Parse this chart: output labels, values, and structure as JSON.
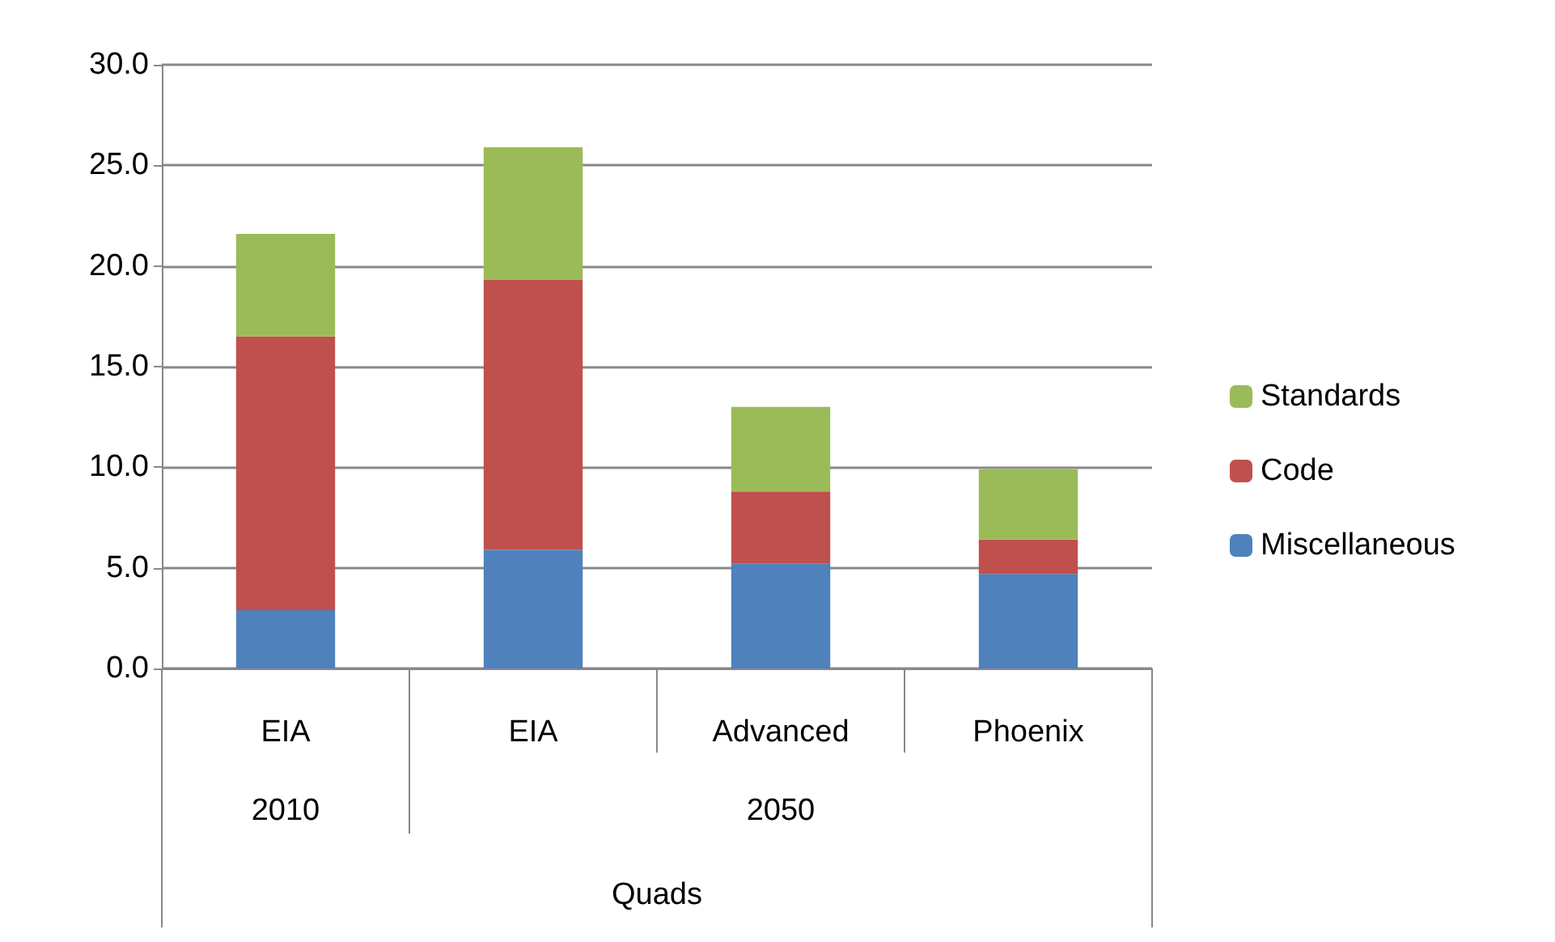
{
  "chart_data": {
    "type": "bar",
    "stacked": true,
    "categories": [
      "EIA",
      "EIA",
      "Advanced",
      "Phoenix"
    ],
    "xlabel": "Quads",
    "annotations": [
      "2010",
      "2050"
    ],
    "series": [
      {
        "name": "Miscellaneous",
        "color": "#4f81bd",
        "values": [
          2.9,
          5.9,
          5.2,
          4.7
        ]
      },
      {
        "name": "Code",
        "color": "#c0504d",
        "values": [
          13.6,
          13.4,
          3.6,
          1.7
        ]
      },
      {
        "name": "Standards",
        "color": "#9bbb59",
        "values": [
          5.1,
          6.6,
          4.2,
          3.5
        ]
      }
    ],
    "ylim": [
      0,
      30
    ],
    "yticks": [
      {
        "value": 0,
        "label": "0.0"
      },
      {
        "value": 5,
        "label": "5.0"
      },
      {
        "value": 10,
        "label": "10.0"
      },
      {
        "value": 15,
        "label": "15.0"
      },
      {
        "value": 20,
        "label": "20.0"
      },
      {
        "value": 25,
        "label": "25.0"
      },
      {
        "value": 30,
        "label": "30.0"
      }
    ],
    "grid": "y",
    "legend": "right"
  }
}
